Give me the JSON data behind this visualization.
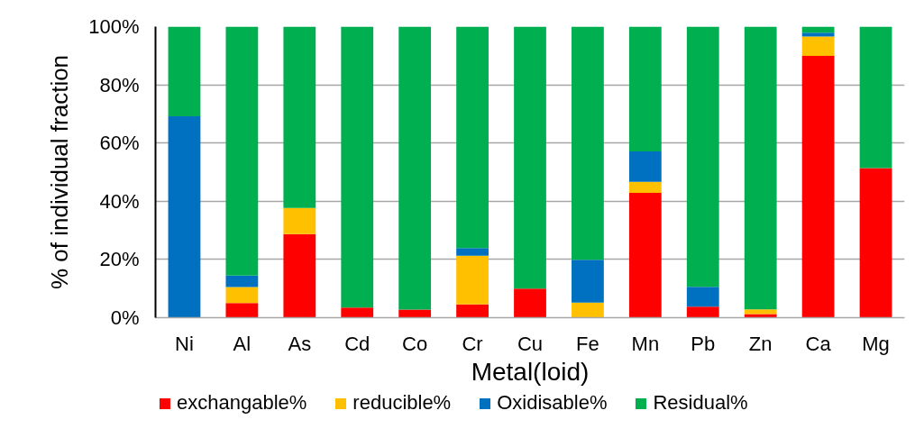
{
  "chart_data": {
    "type": "bar",
    "stacked": true,
    "xlabel": "Metal(loid)",
    "ylabel": "% of individual fraction",
    "categories": [
      "Ni",
      "Al",
      "As",
      "Cd",
      "Co",
      "Cr",
      "Cu",
      "Fe",
      "Mn",
      "Pb",
      "Zn",
      "Ca",
      "Mg"
    ],
    "series": [
      {
        "name": "exchangable%",
        "color": "#ff0000",
        "values": [
          null,
          5.0,
          28.7,
          3.5,
          2.8,
          4.6,
          10.0,
          null,
          42.9,
          3.8,
          1.2,
          89.9,
          51.4
        ]
      },
      {
        "name": "reducible%",
        "color": "#ffc000",
        "values": [
          null,
          5.5,
          9.0,
          null,
          null,
          16.7,
          null,
          5.2,
          3.8,
          null,
          1.7,
          6.7,
          null
        ]
      },
      {
        "name": "Oxidisable%",
        "color": "#0070c0",
        "values": [
          69.2,
          4.0,
          null,
          null,
          null,
          2.6,
          null,
          14.7,
          10.4,
          6.8,
          null,
          1.3,
          null
        ]
      },
      {
        "name": "Residual%",
        "color": "#00b050",
        "values": [
          30.8,
          85.5,
          62.3,
          96.5,
          97.2,
          76.1,
          90.0,
          80.1,
          42.9,
          89.4,
          97.1,
          2.1,
          48.6
        ]
      }
    ],
    "ylim": [
      0,
      100
    ],
    "yticks": [
      {
        "value": 0,
        "label": "0%"
      },
      {
        "value": 20,
        "label": "20%"
      },
      {
        "value": 40,
        "label": "40%"
      },
      {
        "value": 60,
        "label": "60%"
      },
      {
        "value": 80,
        "label": "80%"
      },
      {
        "value": 100,
        "label": "100%"
      }
    ],
    "grid": "y",
    "legend": "bottom"
  }
}
